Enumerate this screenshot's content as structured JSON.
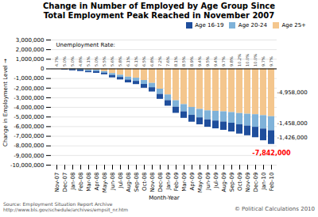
{
  "chart_data": {
    "type": "bar",
    "stacked": true,
    "title": "Change in Number of Employed by Age Group Since\nTotal Employment Peak Reached in November 2007",
    "xlabel": "Month-Year",
    "ylabel": "Change in Employment Level",
    "categories": [
      "Nov-07",
      "Dec-07",
      "Jan-08",
      "Feb-08",
      "Mar-08",
      "Apr-08",
      "May-08",
      "Jun-08",
      "Jul-08",
      "Aug-08",
      "Sep-08",
      "Oct-08",
      "Nov-08",
      "Dec-08",
      "Jan-09",
      "Feb-09",
      "Mar-09",
      "Apr-09",
      "May-09",
      "Jun-09",
      "Jul-09",
      "Aug-09",
      "Sep-09",
      "Oct-09",
      "Nov-09",
      "Dec-09",
      "Jan-10",
      "Feb-10"
    ],
    "series": [
      {
        "name": "Age 16-19",
        "color": "#1F4E9C",
        "values": [
          0,
          -47000,
          -113000,
          -144000,
          -135000,
          -183000,
          -170000,
          -245000,
          -260000,
          -296000,
          -333000,
          -395000,
          -443000,
          -516000,
          -575000,
          -640000,
          -680000,
          -710000,
          -720000,
          -768000,
          -810000,
          -865000,
          -905000,
          -964000,
          -1010000,
          -1083000,
          -1219000,
          -1426000
        ]
      },
      {
        "name": "Age 20-24",
        "color": "#7FB2D9",
        "values": [
          0,
          -30000,
          -80000,
          -120000,
          -150000,
          -150000,
          -155000,
          -200000,
          -230000,
          -300000,
          -330000,
          -410000,
          -450000,
          -540000,
          -590000,
          -670000,
          -750000,
          -820000,
          -880000,
          -940000,
          -1010000,
          -1060000,
          -1110000,
          -1170000,
          -1230000,
          -1310000,
          -1390000,
          -1458000
        ]
      },
      {
        "name": "Age 25+",
        "color": "#F4C68D",
        "values": [
          0,
          -50000,
          50000,
          30000,
          -100000,
          -120000,
          -280000,
          -480000,
          -650000,
          -850000,
          -960000,
          -1200000,
          -1500000,
          -2100000,
          -2700000,
          -3300000,
          -3700000,
          -4000000,
          -4200000,
          -4350000,
          -4400000,
          -4450000,
          -4530000,
          -4630000,
          -4700000,
          -4750000,
          -4850000,
          -4958000
        ]
      }
    ],
    "ylim": [
      -10000000,
      3000000
    ],
    "yticks": [
      {
        "value": -10000000,
        "label": "-10,000,000"
      },
      {
        "value": -9000000,
        "label": "-9,000,000"
      },
      {
        "value": -8000000,
        "label": "-8,000,000"
      },
      {
        "value": -7000000,
        "label": "-7,000,000"
      },
      {
        "value": -6000000,
        "label": "-6,000,000"
      },
      {
        "value": -5000000,
        "label": "-5,000,000"
      },
      {
        "value": -4000000,
        "label": "-4,000,000"
      },
      {
        "value": -3000000,
        "label": "-3,000,000"
      },
      {
        "value": -2000000,
        "label": "-2,000,000"
      },
      {
        "value": -1000000,
        "label": "-1,000,000"
      },
      0,
      {
        "value": 1000000,
        "label": "1,000,000"
      },
      {
        "value": 2000000,
        "label": "2,000,000"
      },
      {
        "value": 3000000,
        "label": "3,000,000"
      }
    ],
    "grid": true,
    "legend": "upper right",
    "annotations": [
      {
        "text": "-1,426,000",
        "series": "Age 16-19"
      },
      {
        "text": "-1,458,000",
        "series": "Age 20-24"
      },
      {
        "text": "-4,958,000",
        "series": "Age 25+"
      },
      {
        "text": "-7,842,000",
        "color": "#FF0000"
      },
      {
        "text": "Unemployment Rate:"
      }
    ],
    "unemployment_rates": [
      "4.7%",
      "5.0%",
      "5.0%",
      "4.8%",
      "5.1%",
      "5.0%",
      "5.5%",
      "5.6%",
      "5.8%",
      "6.1%",
      "6.1%",
      "6.5%",
      "6.8%",
      "7.2%",
      "7.6%",
      "8.1%",
      "8.5%",
      "8.9%",
      "9.4%",
      "9.5%",
      "9.4%",
      "9.7%",
      "9.8%",
      "10.2%",
      "10.0%",
      "10.0%",
      "9.7%",
      "9.7%"
    ],
    "source": "Source: Employment Situation Report Archive\nhttp://www.bls.gov/schedule/archives/empsit_nr.htm",
    "copyright": "© Political Calculations 2010"
  }
}
